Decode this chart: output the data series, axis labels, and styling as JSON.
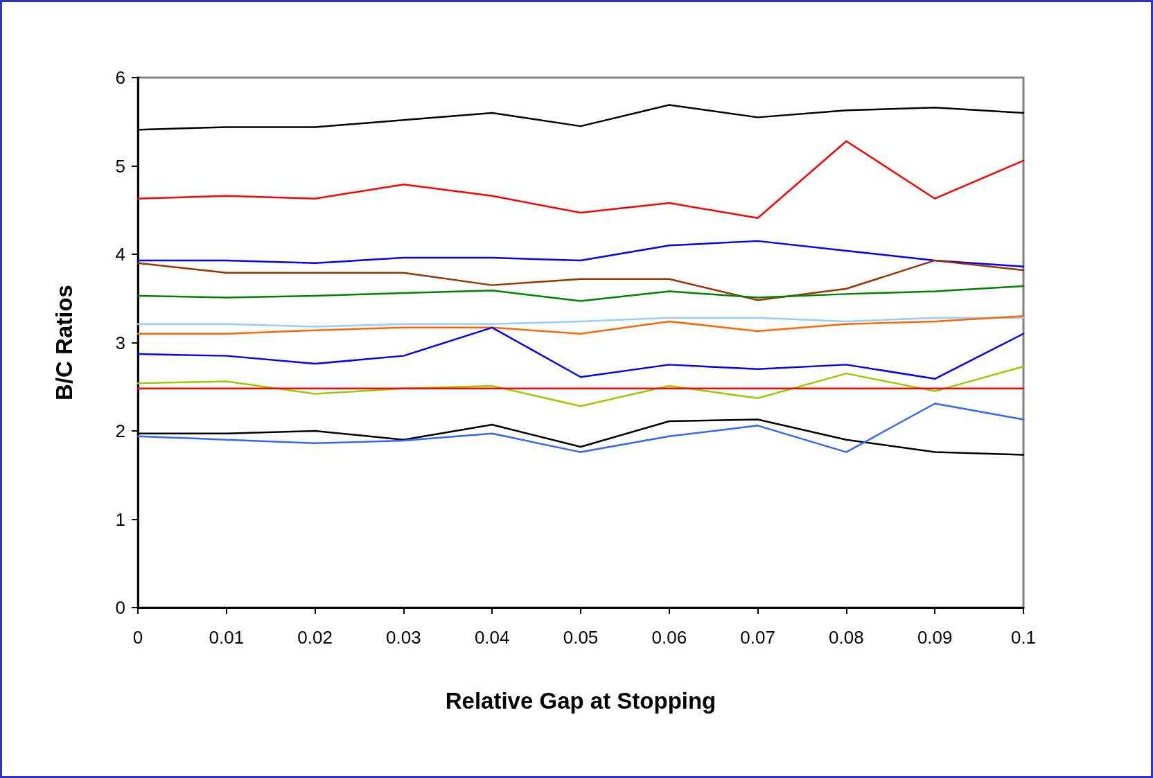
{
  "chart_data": {
    "type": "line",
    "xlabel": "Relative Gap at Stopping",
    "ylabel": "B/C Ratios",
    "x": [
      0,
      0.01,
      0.02,
      0.03,
      0.04,
      0.05,
      0.06,
      0.07,
      0.08,
      0.09,
      0.1
    ],
    "series": [
      {
        "color": "#000000",
        "values": [
          5.41,
          5.44,
          5.44,
          5.52,
          5.6,
          5.45,
          5.69,
          5.55,
          5.63,
          5.66,
          5.6
        ]
      },
      {
        "color": "#ff0000",
        "values": [
          4.63,
          4.66,
          4.63,
          4.79,
          4.66,
          4.47,
          4.58,
          4.41,
          5.28,
          4.63,
          5.06
        ]
      },
      {
        "color": "#0000ff",
        "values": [
          3.93,
          3.93,
          3.9,
          3.96,
          3.96,
          3.93,
          4.1,
          4.15,
          4.04,
          3.93,
          3.86
        ]
      },
      {
        "color": "#993300",
        "values": [
          3.9,
          3.79,
          3.79,
          3.79,
          3.65,
          3.72,
          3.72,
          3.48,
          3.61,
          3.93,
          3.82
        ]
      },
      {
        "color": "#008000",
        "values": [
          3.53,
          3.51,
          3.53,
          3.56,
          3.59,
          3.47,
          3.58,
          3.51,
          3.55,
          3.58,
          3.64
        ]
      },
      {
        "color": "#99ccff",
        "values": [
          3.21,
          3.21,
          3.18,
          3.21,
          3.21,
          3.24,
          3.28,
          3.28,
          3.24,
          3.28,
          3.28
        ]
      },
      {
        "color": "#ff6600",
        "values": [
          3.1,
          3.1,
          3.14,
          3.17,
          3.17,
          3.1,
          3.24,
          3.13,
          3.21,
          3.24,
          3.3
        ]
      },
      {
        "color": "#0000ff",
        "values": [
          2.87,
          2.85,
          2.76,
          2.85,
          3.17,
          2.61,
          2.75,
          2.7,
          2.75,
          2.59,
          3.1
        ]
      },
      {
        "color": "#99cc00",
        "values": [
          2.54,
          2.56,
          2.42,
          2.48,
          2.51,
          2.28,
          2.51,
          2.37,
          2.65,
          2.45,
          2.73
        ]
      },
      {
        "color": "#ff0000",
        "values": [
          2.48,
          2.48,
          2.48,
          2.48,
          2.48,
          2.48,
          2.48,
          2.48,
          2.48,
          2.48,
          2.48
        ]
      },
      {
        "color": "#000000",
        "values": [
          1.97,
          1.97,
          2.0,
          1.9,
          2.07,
          1.82,
          2.11,
          2.13,
          1.9,
          1.76,
          1.73
        ]
      },
      {
        "color": "#3366ff",
        "values": [
          1.94,
          1.9,
          1.86,
          1.89,
          1.97,
          1.76,
          1.94,
          2.06,
          1.76,
          2.31,
          2.13
        ]
      }
    ],
    "xlim": [
      0,
      0.1
    ],
    "xticks": [
      0,
      0.01,
      0.02,
      0.03,
      0.04,
      0.05,
      0.06,
      0.07,
      0.08,
      0.09,
      0.1
    ],
    "ylim": [
      0,
      6
    ],
    "yticks": [
      0,
      1,
      2,
      3,
      4,
      5,
      6
    ],
    "marker": "none",
    "line_style": "solid"
  }
}
